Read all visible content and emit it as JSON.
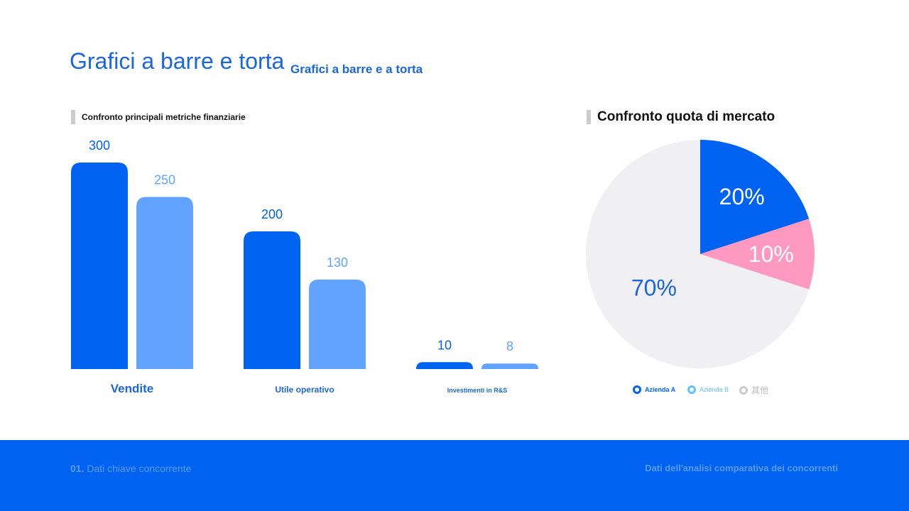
{
  "header": {
    "title": "Grafici a barre e torta",
    "subtitle": "Grafici a barre e a torta"
  },
  "footer": {
    "section_number": "01.",
    "section_label": "Dati chiave concorrente",
    "right_text": "Dati dell'analisi comparativa dei concorrenti"
  },
  "colors": {
    "azienda_a": "#0062F0",
    "azienda_b": "#62A3FF",
    "altro": "#F0EFF2",
    "pink": "#FF99BF"
  },
  "chart_data": [
    {
      "type": "bar",
      "title": "Confronto principali metriche finanziarie",
      "categories": [
        "Vendite",
        "Utile operativo",
        "Investimenti in R&S"
      ],
      "series": [
        {
          "name": "Azienda A",
          "values": [
            300,
            200,
            10
          ]
        },
        {
          "name": "Azienda B",
          "values": [
            250,
            130,
            8
          ]
        }
      ],
      "ylim": [
        0,
        300
      ],
      "grid": false
    },
    {
      "type": "pie",
      "title": "Confronto quota di mercato",
      "labels": [
        "Azienda A",
        "Azienda B",
        "其他"
      ],
      "values": [
        20,
        10,
        70
      ],
      "slice_labels": [
        "20%",
        "10%",
        "70%"
      ],
      "legend": "bottom"
    }
  ]
}
